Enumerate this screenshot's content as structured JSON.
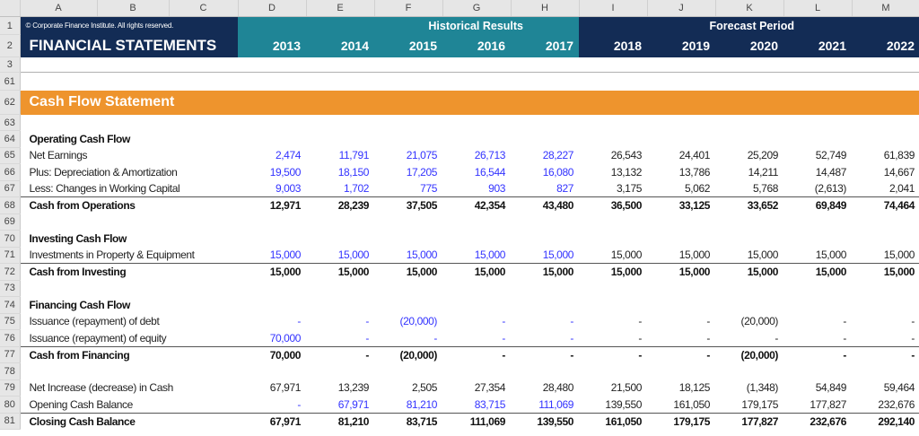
{
  "columns": [
    "A",
    "B",
    "C",
    "D",
    "E",
    "F",
    "G",
    "H",
    "I",
    "J",
    "K",
    "L",
    "M"
  ],
  "header": {
    "copyright": "© Corporate Finance Institute. All rights reserved.",
    "title": "FINANCIAL STATEMENTS",
    "historical_label": "Historical Results",
    "forecast_label": "Forecast Period",
    "years": [
      "2013",
      "2014",
      "2015",
      "2016",
      "2017",
      "2018",
      "2019",
      "2020",
      "2021",
      "2022"
    ],
    "row_numbers": [
      "1",
      "2",
      "3",
      "61",
      "62",
      "63"
    ]
  },
  "section_title": "Cash Flow Statement",
  "colors": {
    "navy": "#132c55",
    "teal": "#1f8596",
    "orange": "#ee942d",
    "input_blue": "#3333ff"
  },
  "rows": [
    {
      "n": "64",
      "label": "Operating Cash Flow",
      "type": "section",
      "values": []
    },
    {
      "n": "65",
      "label": "Net Earnings",
      "type": "item",
      "inputs": 5,
      "values": [
        "2,474",
        "11,791",
        "21,075",
        "26,713",
        "28,227",
        "26,543",
        "24,401",
        "25,209",
        "52,749",
        "61,839"
      ]
    },
    {
      "n": "66",
      "label": "Plus: Depreciation & Amortization",
      "type": "item",
      "inputs": 5,
      "values": [
        "19,500",
        "18,150",
        "17,205",
        "16,544",
        "16,080",
        "13,132",
        "13,786",
        "14,211",
        "14,487",
        "14,667"
      ]
    },
    {
      "n": "67",
      "label": "Less: Changes in Working Capital",
      "type": "item",
      "inputs": 5,
      "values": [
        "9,003",
        "1,702",
        "775",
        "903",
        "827",
        "3,175",
        "5,062",
        "5,768",
        "(2,613)",
        "2,041"
      ]
    },
    {
      "n": "68",
      "label": "Cash from Operations",
      "type": "total",
      "values": [
        "12,971",
        "28,239",
        "37,505",
        "42,354",
        "43,480",
        "36,500",
        "33,125",
        "33,652",
        "69,849",
        "74,464"
      ]
    },
    {
      "n": "69",
      "label": "",
      "type": "blank",
      "values": []
    },
    {
      "n": "70",
      "label": "Investing Cash Flow",
      "type": "section",
      "values": []
    },
    {
      "n": "71",
      "label": "Investments in Property & Equipment",
      "type": "item",
      "inputs": 5,
      "values": [
        "15,000",
        "15,000",
        "15,000",
        "15,000",
        "15,000",
        "15,000",
        "15,000",
        "15,000",
        "15,000",
        "15,000"
      ]
    },
    {
      "n": "72",
      "label": "Cash from Investing",
      "type": "total",
      "values": [
        "15,000",
        "15,000",
        "15,000",
        "15,000",
        "15,000",
        "15,000",
        "15,000",
        "15,000",
        "15,000",
        "15,000"
      ]
    },
    {
      "n": "73",
      "label": "",
      "type": "blank",
      "values": []
    },
    {
      "n": "74",
      "label": "Financing Cash Flow",
      "type": "section",
      "values": []
    },
    {
      "n": "75",
      "label": "Issuance (repayment) of debt",
      "type": "item",
      "inputs": 5,
      "values": [
        "-",
        "-",
        "(20,000)",
        "-",
        "-",
        "-",
        "-",
        "(20,000)",
        "-",
        "-"
      ]
    },
    {
      "n": "76",
      "label": "Issuance (repayment) of equity",
      "type": "item",
      "inputs": 5,
      "values": [
        "70,000",
        "-",
        "-",
        "-",
        "-",
        "-",
        "-",
        "-",
        "-",
        "-"
      ]
    },
    {
      "n": "77",
      "label": "Cash from Financing",
      "type": "total",
      "values": [
        "70,000",
        "-",
        "(20,000)",
        "-",
        "-",
        "-",
        "-",
        "(20,000)",
        "-",
        "-"
      ]
    },
    {
      "n": "78",
      "label": "",
      "type": "blank",
      "values": []
    },
    {
      "n": "79",
      "label": "Net Increase (decrease) in Cash",
      "type": "item",
      "inputs": 0,
      "values": [
        "67,971",
        "13,239",
        "2,505",
        "27,354",
        "28,480",
        "21,500",
        "18,125",
        "(1,348)",
        "54,849",
        "59,464"
      ]
    },
    {
      "n": "80",
      "label": "Opening Cash Balance",
      "type": "item",
      "inputs": 5,
      "values": [
        "-",
        "67,971",
        "81,210",
        "83,715",
        "111,069",
        "139,550",
        "161,050",
        "179,175",
        "177,827",
        "232,676"
      ]
    },
    {
      "n": "81",
      "label": "Closing Cash Balance",
      "type": "total",
      "values": [
        "67,971",
        "81,210",
        "83,715",
        "111,069",
        "139,550",
        "161,050",
        "179,175",
        "177,827",
        "232,676",
        "292,140"
      ]
    }
  ]
}
